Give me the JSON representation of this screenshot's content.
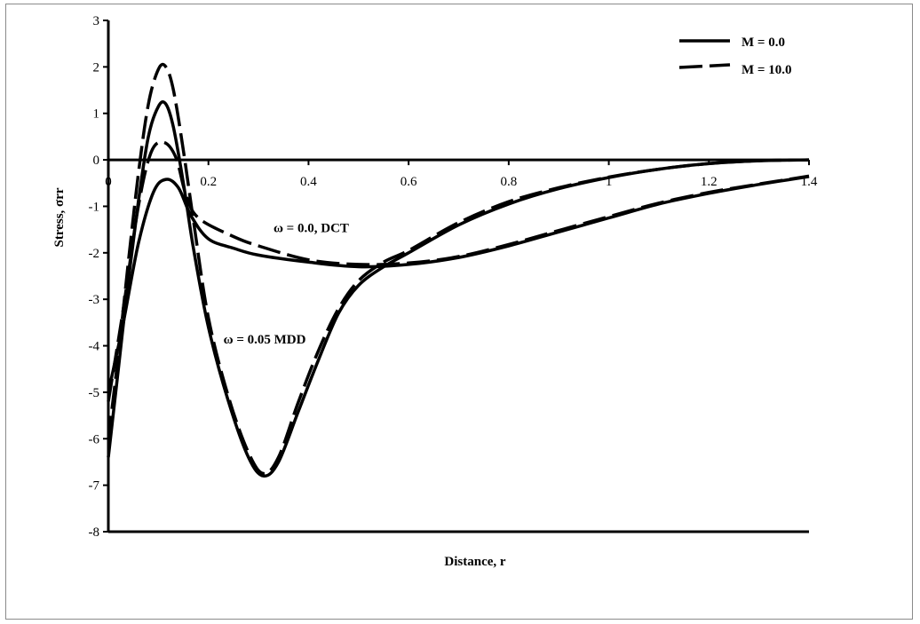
{
  "chart_data": {
    "type": "line",
    "title": "",
    "xlabel": "Distance, r",
    "ylabel": "Stress, σrr",
    "xlim": [
      0,
      1.4
    ],
    "ylim": [
      -8,
      3
    ],
    "x_ticks": [
      "0",
      "0.2",
      "0.4",
      "0.6",
      "0.8",
      "1",
      "1.2",
      "1.4"
    ],
    "y_ticks": [
      "3",
      "2",
      "1",
      "0",
      "-1",
      "-2",
      "-3",
      "-4",
      "-5",
      "-6",
      "-7",
      "-8"
    ],
    "grid": false,
    "legend": {
      "position": "top-right",
      "entries": [
        {
          "label": "M = 0.0",
          "style": "solid"
        },
        {
          "label": "M = 10.0",
          "style": "dashed"
        }
      ]
    },
    "annotations": [
      {
        "text": "ω = 0.0,  DCT",
        "x": 0.33,
        "y": -1.55
      },
      {
        "text": "ω = 0.05  MDD",
        "x": 0.23,
        "y": -3.95
      }
    ],
    "series": [
      {
        "style": "solid",
        "group": "ω = 0.0, DCT",
        "legend_ref": "M = 0.0",
        "points": [
          [
            0,
            -5.0
          ],
          [
            0.03,
            -3.5
          ],
          [
            0.06,
            -1.8
          ],
          [
            0.09,
            -0.7
          ],
          [
            0.115,
            -0.42
          ],
          [
            0.14,
            -0.6
          ],
          [
            0.165,
            -1.2
          ],
          [
            0.2,
            -1.7
          ],
          [
            0.25,
            -1.9
          ],
          [
            0.3,
            -2.05
          ],
          [
            0.4,
            -2.2
          ],
          [
            0.5,
            -2.3
          ],
          [
            0.6,
            -2.25
          ],
          [
            0.7,
            -2.1
          ],
          [
            0.8,
            -1.85
          ],
          [
            0.9,
            -1.55
          ],
          [
            1.0,
            -1.25
          ],
          [
            1.1,
            -0.95
          ],
          [
            1.2,
            -0.72
          ],
          [
            1.3,
            -0.53
          ],
          [
            1.4,
            -0.36
          ]
        ]
      },
      {
        "style": "dashed",
        "group": "ω = 0.0, DCT",
        "legend_ref": "M = 10.0",
        "points": [
          [
            0,
            -5.2
          ],
          [
            0.03,
            -3.2
          ],
          [
            0.06,
            -1.0
          ],
          [
            0.085,
            0.15
          ],
          [
            0.11,
            0.38
          ],
          [
            0.135,
            0.05
          ],
          [
            0.155,
            -0.75
          ],
          [
            0.18,
            -1.25
          ],
          [
            0.25,
            -1.65
          ],
          [
            0.3,
            -1.85
          ],
          [
            0.4,
            -2.15
          ],
          [
            0.5,
            -2.25
          ],
          [
            0.6,
            -2.22
          ],
          [
            0.7,
            -2.08
          ],
          [
            0.8,
            -1.82
          ],
          [
            0.9,
            -1.52
          ],
          [
            1.0,
            -1.22
          ],
          [
            1.1,
            -0.93
          ],
          [
            1.2,
            -0.7
          ],
          [
            1.3,
            -0.52
          ],
          [
            1.4,
            -0.35
          ]
        ]
      },
      {
        "style": "solid",
        "group": "ω = 0.05 MDD",
        "legend_ref": "M = 0.0",
        "points": [
          [
            0,
            -6.4
          ],
          [
            0.02,
            -4.5
          ],
          [
            0.04,
            -2.6
          ],
          [
            0.06,
            -0.9
          ],
          [
            0.08,
            0.5
          ],
          [
            0.1,
            1.15
          ],
          [
            0.115,
            1.2
          ],
          [
            0.13,
            0.7
          ],
          [
            0.15,
            -0.5
          ],
          [
            0.17,
            -1.9
          ],
          [
            0.2,
            -3.6
          ],
          [
            0.24,
            -5.2
          ],
          [
            0.28,
            -6.4
          ],
          [
            0.31,
            -6.8
          ],
          [
            0.34,
            -6.5
          ],
          [
            0.38,
            -5.4
          ],
          [
            0.42,
            -4.3
          ],
          [
            0.46,
            -3.3
          ],
          [
            0.5,
            -2.7
          ],
          [
            0.55,
            -2.3
          ],
          [
            0.6,
            -2.0
          ],
          [
            0.7,
            -1.4
          ],
          [
            0.8,
            -0.95
          ],
          [
            0.9,
            -0.62
          ],
          [
            1.0,
            -0.38
          ],
          [
            1.1,
            -0.2
          ],
          [
            1.2,
            -0.08
          ],
          [
            1.3,
            -0.02
          ],
          [
            1.4,
            0.0
          ]
        ]
      },
      {
        "style": "dashed",
        "group": "ω = 0.05 MDD",
        "legend_ref": "M = 10.0",
        "points": [
          [
            0,
            -6.0
          ],
          [
            0.02,
            -4.2
          ],
          [
            0.04,
            -2.2
          ],
          [
            0.06,
            -0.3
          ],
          [
            0.08,
            1.2
          ],
          [
            0.1,
            1.95
          ],
          [
            0.115,
            2.0
          ],
          [
            0.13,
            1.5
          ],
          [
            0.15,
            0.2
          ],
          [
            0.17,
            -1.3
          ],
          [
            0.2,
            -3.4
          ],
          [
            0.24,
            -5.1
          ],
          [
            0.28,
            -6.3
          ],
          [
            0.31,
            -6.75
          ],
          [
            0.34,
            -6.4
          ],
          [
            0.38,
            -5.2
          ],
          [
            0.42,
            -4.1
          ],
          [
            0.46,
            -3.2
          ],
          [
            0.5,
            -2.6
          ],
          [
            0.55,
            -2.2
          ],
          [
            0.6,
            -1.95
          ],
          [
            0.7,
            -1.35
          ],
          [
            0.8,
            -0.9
          ],
          [
            0.9,
            -0.6
          ],
          [
            1.0,
            -0.37
          ],
          [
            1.1,
            -0.2
          ],
          [
            1.2,
            -0.08
          ],
          [
            1.3,
            -0.02
          ],
          [
            1.4,
            0.0
          ]
        ]
      }
    ]
  }
}
